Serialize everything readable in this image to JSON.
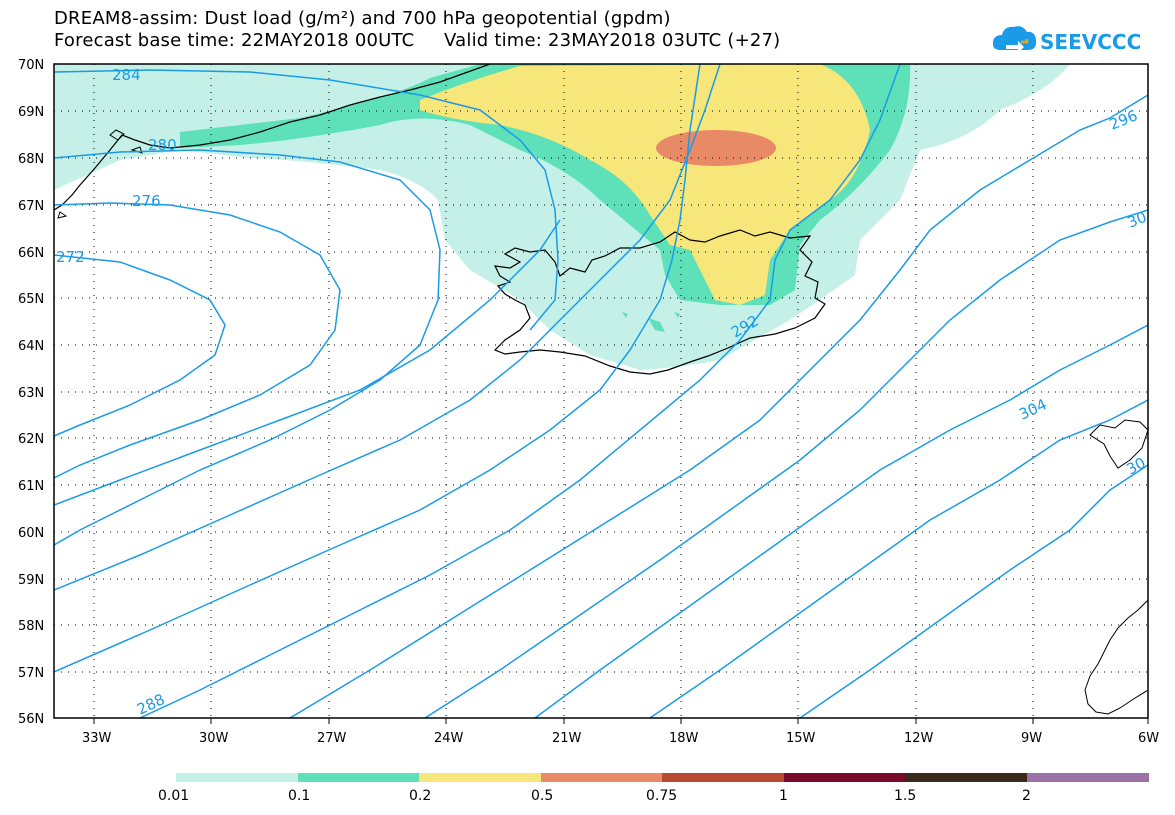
{
  "title_line1": "DREAM8-assim: Dust load (g/m²) and 700 hPa geopotential (gpdm)",
  "title_line2": "Forecast base time: 22MAY2018 00UTC     Valid time: 23MAY2018 03UTC (+27)",
  "logo_text": "SEEVCCC",
  "lat_labels": [
    "70N",
    "69N",
    "68N",
    "67N",
    "66N",
    "65N",
    "64N",
    "63N",
    "62N",
    "61N",
    "60N",
    "59N",
    "58N",
    "57N",
    "56N"
  ],
  "lon_labels": [
    "33W",
    "30W",
    "27W",
    "24W",
    "21W",
    "18W",
    "15W",
    "12W",
    "9W",
    "6W"
  ],
  "contour_labels": {
    "c284": "284",
    "c280": "280",
    "c276": "276",
    "c272": "272",
    "c288": "288",
    "c292": "292",
    "c296": "296",
    "c300a": "30",
    "c304": "304",
    "c300b": "30"
  },
  "colorbar": {
    "tick_labels": [
      "0.01",
      "0.1",
      "0.2",
      "0.5",
      "0.75",
      "1",
      "1.5",
      "2"
    ],
    "colors": [
      "#c4f0e8",
      "#5ee0b8",
      "#f7e67a",
      "#e88a66",
      "#b84a30",
      "#7a0a2a",
      "#3a2a1a",
      "#9a72a8"
    ]
  },
  "colors": {
    "contour": "#1a9be8",
    "coast": "#000000",
    "land": "#ffffff"
  }
}
